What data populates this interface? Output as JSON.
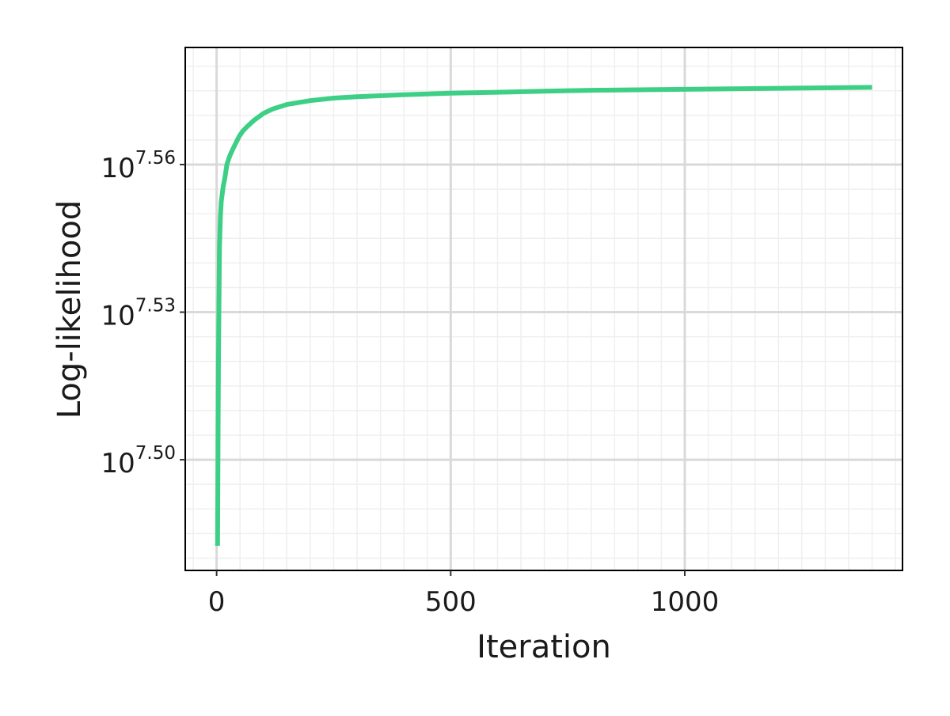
{
  "chart_data": {
    "type": "line",
    "title": "",
    "xlabel": "Iteration",
    "ylabel": "Log-likelihood",
    "y_scale": "log10",
    "grid": true,
    "legend": "none",
    "xlim": [
      -67,
      1465
    ],
    "ylim": [
      7.4775,
      7.5838
    ],
    "x_ticks": [
      {
        "value": 0,
        "label": "0"
      },
      {
        "value": 500,
        "label": "500"
      },
      {
        "value": 1000,
        "label": "1000"
      }
    ],
    "y_ticks": [
      {
        "log10": 7.5,
        "base": "10",
        "exp": "7.50"
      },
      {
        "log10": 7.53,
        "base": "10",
        "exp": "7.53"
      },
      {
        "log10": 7.56,
        "base": "10",
        "exp": "7.56"
      }
    ],
    "series": [
      {
        "color": "#3ecf86",
        "x": [
          2,
          3,
          4,
          6,
          8,
          10,
          14,
          18,
          22,
          26,
          30,
          35,
          40,
          48,
          56,
          65,
          80,
          100,
          120,
          150,
          200,
          250,
          300,
          400,
          500,
          600,
          700,
          800,
          900,
          1000,
          1100,
          1200,
          1300,
          1400
        ],
        "log10_y": [
          7.4825,
          7.503,
          7.521,
          7.543,
          7.5495,
          7.5525,
          7.5555,
          7.5575,
          7.56,
          7.5612,
          7.5622,
          7.5632,
          7.5642,
          7.5657,
          7.5668,
          7.5677,
          7.569,
          7.5704,
          7.5713,
          7.5722,
          7.573,
          7.5735,
          7.5738,
          7.5742,
          7.5745,
          7.5747,
          7.5749,
          7.5751,
          7.5752,
          7.5753,
          7.5754,
          7.5755,
          7.5756,
          7.5757
        ]
      }
    ]
  }
}
